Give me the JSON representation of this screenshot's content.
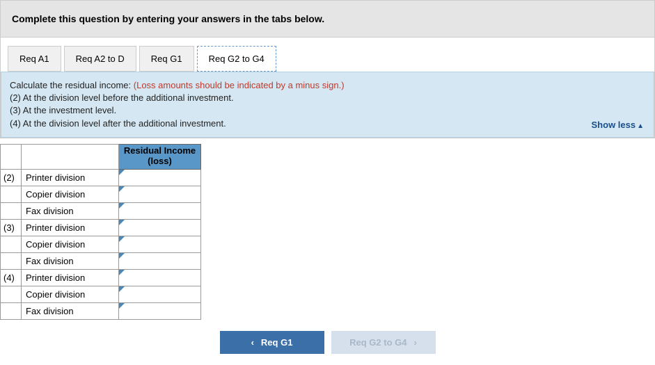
{
  "banner": {
    "text": "Complete this question by entering your answers in the tabs below."
  },
  "tabs": [
    {
      "label": "Req A1",
      "active": false
    },
    {
      "label": "Req A2 to D",
      "active": false
    },
    {
      "label": "Req G1",
      "active": false
    },
    {
      "label": "Req G2 to G4",
      "active": true
    }
  ],
  "instructions": {
    "lead": "Calculate the residual income: ",
    "highlight": "(Loss amounts should be indicated by a minus sign.)",
    "lines": [
      "(2) At the division level before the additional investment.",
      "(3) At the investment level.",
      "(4) At the division level after the additional investment."
    ],
    "toggle": "Show less"
  },
  "table": {
    "header": "Residual Income (loss)",
    "rows": [
      {
        "num": "(2)",
        "label": "Printer division",
        "value": ""
      },
      {
        "num": "",
        "label": "Copier division",
        "value": ""
      },
      {
        "num": "",
        "label": "Fax division",
        "value": ""
      },
      {
        "num": "(3)",
        "label": "Printer division",
        "value": ""
      },
      {
        "num": "",
        "label": "Copier division",
        "value": ""
      },
      {
        "num": "",
        "label": "Fax division",
        "value": ""
      },
      {
        "num": "(4)",
        "label": "Printer division",
        "value": ""
      },
      {
        "num": "",
        "label": "Copier division",
        "value": ""
      },
      {
        "num": "",
        "label": "Fax division",
        "value": ""
      }
    ]
  },
  "footer": {
    "prev": "Req G1",
    "next": "Req G2 to G4"
  }
}
